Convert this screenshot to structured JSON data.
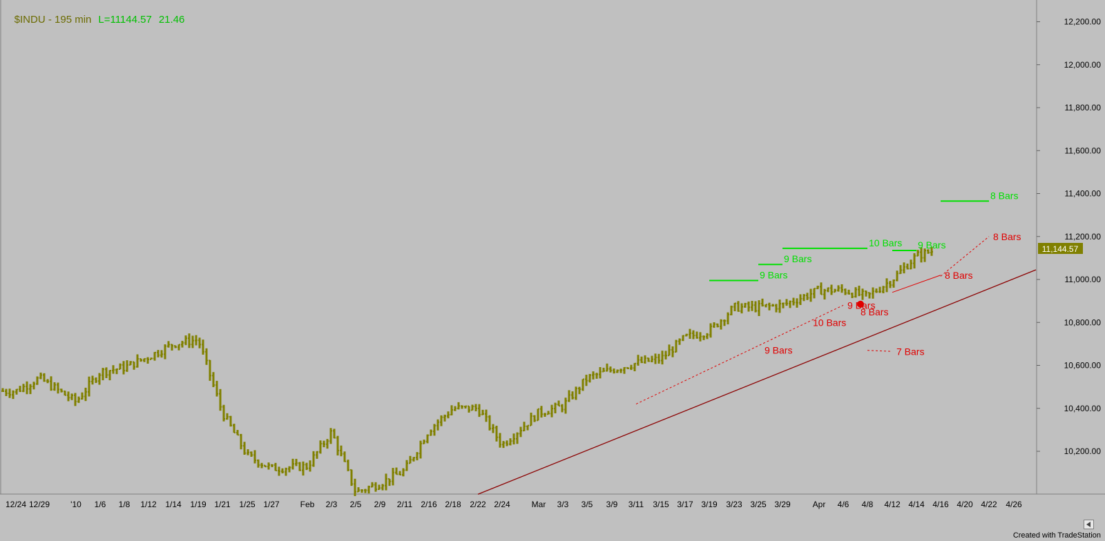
{
  "header": {
    "symbol_label": "$INDU - 195 min",
    "last_label": "L=11144.57",
    "change_label": "21.46"
  },
  "footer": {
    "credit": "Created with TradeStation"
  },
  "colors": {
    "background": "#c0c0c0",
    "bars": "#808000",
    "green": "#00e000",
    "red": "#e00000",
    "trendline": "#8b0000",
    "price_marker": "#808000"
  },
  "chart_data": {
    "type": "ohlc_bar",
    "title": "$INDU - 195 min",
    "symbol": "$INDU",
    "interval": "195 min",
    "last_price": 11144.57,
    "last_change": 21.46,
    "price_marker_label": "11,144.57",
    "ylim": [
      10000,
      12250
    ],
    "y_ticks": [
      10200,
      10400,
      10600,
      10800,
      11000,
      11200,
      11400,
      11600,
      11800,
      12000,
      12200
    ],
    "y_tick_labels": [
      "10,200.00",
      "10,400.00",
      "10,600.00",
      "10,800.00",
      "11,000.00",
      "11,200.00",
      "11,400.00",
      "11,600.00",
      "11,800.00",
      "12,000.00",
      "12,200.00"
    ],
    "x_tick_labels": [
      "12/24",
      "12/29",
      "'10",
      "1/6",
      "1/8",
      "1/12",
      "1/14",
      "1/19",
      "1/21",
      "1/25",
      "1/27",
      "Feb",
      "2/3",
      "2/5",
      "2/9",
      "2/11",
      "2/16",
      "2/18",
      "2/22",
      "2/24",
      "Mar",
      "3/3",
      "3/5",
      "3/9",
      "3/11",
      "3/15",
      "3/17",
      "3/19",
      "3/23",
      "3/25",
      "3/29",
      "Apr",
      "4/6",
      "4/8",
      "4/12",
      "4/14",
      "4/16",
      "4/20",
      "4/22",
      "4/26"
    ],
    "price_path": [
      [
        "12/24",
        10480
      ],
      [
        "12/29",
        10540
      ],
      [
        "'10",
        10430
      ],
      [
        "1/6",
        10570
      ],
      [
        "1/8",
        10590
      ],
      [
        "1/12",
        10640
      ],
      [
        "1/14",
        10700
      ],
      [
        "1/19",
        10720
      ],
      [
        "1/21",
        10380
      ],
      [
        "1/25",
        10180
      ],
      [
        "1/27",
        10120
      ],
      [
        "Feb",
        10130
      ],
      [
        "2/3",
        10290
      ],
      [
        "2/5",
        10010
      ],
      [
        "2/9",
        10050
      ],
      [
        "2/11",
        10110
      ],
      [
        "2/16",
        10300
      ],
      [
        "2/18",
        10400
      ],
      [
        "2/22",
        10400
      ],
      [
        "2/24",
        10230
      ],
      [
        "Mar",
        10380
      ],
      [
        "3/3",
        10410
      ],
      [
        "3/5",
        10540
      ],
      [
        "3/9",
        10580
      ],
      [
        "3/11",
        10610
      ],
      [
        "3/15",
        10630
      ],
      [
        "3/17",
        10730
      ],
      [
        "3/19",
        10760
      ],
      [
        "3/23",
        10870
      ],
      [
        "3/25",
        10870
      ],
      [
        "3/29",
        10880
      ],
      [
        "Apr",
        10950
      ],
      [
        "4/6",
        10950
      ],
      [
        "4/8",
        10920
      ],
      [
        "4/12",
        11000
      ],
      [
        "4/14",
        11110
      ],
      [
        "4/16",
        11144.57
      ]
    ],
    "annotations": [
      {
        "label": "9 Bars",
        "color": "green",
        "kind": "horizontal",
        "x": [
          "3/19",
          "3/25"
        ],
        "y": 10995
      },
      {
        "label": "9 Bars",
        "color": "green",
        "kind": "horizontal",
        "x": [
          "3/25",
          "3/29"
        ],
        "y": 11070
      },
      {
        "label": "10 Bars",
        "color": "green",
        "kind": "horizontal",
        "x": [
          "3/29",
          "4/8"
        ],
        "y": 11145
      },
      {
        "label": "9 Bars",
        "color": "green",
        "kind": "horizontal",
        "x": [
          "4/12",
          "4/14"
        ],
        "y": 11135
      },
      {
        "label": "8 Bars",
        "color": "green",
        "kind": "horizontal",
        "x": [
          "4/16",
          "4/22"
        ],
        "y": 11365
      },
      {
        "label": "8 Bars",
        "color": "red",
        "kind": "dotted",
        "x": [
          "4/16",
          "4/22"
        ],
        "y": [
          11015,
          11200
        ]
      },
      {
        "label": "8 Bars",
        "color": "red",
        "kind": "solid",
        "x": [
          "4/12",
          "4/16"
        ],
        "y": [
          10940,
          11020
        ]
      },
      {
        "label": "8 Bars",
        "color": "red",
        "kind": "marker",
        "x": "4/8",
        "y": 10885
      },
      {
        "label": "10 Bars",
        "color": "red",
        "kind": "text",
        "x": "3/29",
        "y": 10800
      },
      {
        "label": "9 Bars",
        "color": "red",
        "kind": "text",
        "x": "3/23",
        "y": 10670
      },
      {
        "label": "9 Bars",
        "color": "red",
        "kind": "dotted",
        "x": [
          "3/11",
          "4/6"
        ],
        "y": [
          10420,
          10880
        ]
      },
      {
        "label": "7 Bars",
        "color": "red",
        "kind": "dotted",
        "x": [
          "4/8",
          "4/12"
        ],
        "y": [
          10670,
          10665
        ]
      },
      {
        "label": "",
        "color": "darkred",
        "kind": "trendline",
        "x": [
          "2/22",
          "end"
        ],
        "y": [
          10000,
          11045
        ]
      }
    ],
    "grid": false,
    "legend": "none"
  }
}
